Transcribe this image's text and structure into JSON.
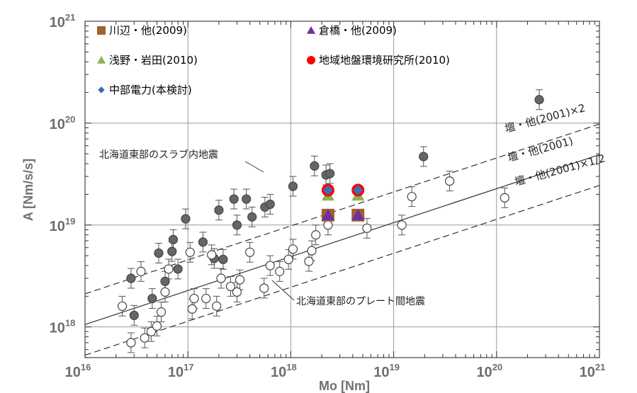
{
  "chart_data": {
    "type": "scatter",
    "x_scale": "log",
    "y_scale": "log",
    "xlim": [
      1e+16,
      1e+21
    ],
    "ylim": [
      5e+17,
      1e+21
    ],
    "x_tick_labels": [
      {
        "value": 1e+16,
        "base": "10",
        "exp": "16"
      },
      {
        "value": 1e+17,
        "base": "10",
        "exp": "17"
      },
      {
        "value": 1e+18,
        "base": "10",
        "exp": "18"
      },
      {
        "value": 1e+19,
        "base": "10",
        "exp": "19"
      },
      {
        "value": 1e+20,
        "base": "10",
        "exp": "20"
      },
      {
        "value": 1e+21,
        "base": "10",
        "exp": "21"
      }
    ],
    "y_tick_labels": [
      {
        "value": 1e+18,
        "base": "10",
        "exp": "18"
      },
      {
        "value": 1e+19,
        "base": "10",
        "exp": "19"
      },
      {
        "value": 1e+20,
        "base": "10",
        "exp": "20"
      },
      {
        "value": 1e+21,
        "base": "10",
        "exp": "21"
      }
    ],
    "xlabel": "Mo [Nm]",
    "ylabel": "A  [Nm/s/s]",
    "grid": true,
    "legend_placement": "top-left",
    "legend": [
      {
        "label": "川辺・他(2009)",
        "marker": "square",
        "color": "#a0622d"
      },
      {
        "label": "倉橋・他(2009)",
        "marker": "triangle",
        "color": "#7030a0"
      },
      {
        "label": "浅野・岩田(2010)",
        "marker": "triangle",
        "color": "#8db255"
      },
      {
        "label": "地域地盤環境研究所(2010)",
        "marker": "circle",
        "color": "#ff0000"
      },
      {
        "label": "中部電力(本検討)",
        "marker": "diamond",
        "color": "#3d6fb0"
      }
    ],
    "reference_lines": [
      {
        "label": "壇・他(2001)×2",
        "factor": 2
      },
      {
        "label": "壇・他(2001)",
        "factor": 1
      },
      {
        "label": "壇・他(2001)×1/2",
        "factor": 0.5
      }
    ],
    "reference_relation": {
      "A_at_Mo_1e18": 4.9e+18,
      "exponent": 0.3333
    },
    "annotations": [
      {
        "text": "北海道東部のスラブ内地震"
      },
      {
        "text": "北海道東部のプレート間地震"
      }
    ],
    "series": [
      {
        "name": "北海道東部のスラブ内地震",
        "marker": "filled-circle",
        "color": "#666666",
        "points": [
          [
            2.8e+16,
            3e+18
          ],
          [
            3e+16,
            1.3e+18
          ],
          [
            4.5e+16,
            1.9e+18
          ],
          [
            5.2e+16,
            5.3e+18
          ],
          [
            6e+16,
            2.8e+18
          ],
          [
            7e+16,
            5.5e+18
          ],
          [
            7.2e+16,
            7.2e+18
          ],
          [
            8e+16,
            3.7e+18
          ],
          [
            9.5e+16,
            1.15e+19
          ],
          [
            1.4e+17,
            6.8e+18
          ],
          [
            1.8e+17,
            4.7e+18
          ],
          [
            2e+17,
            1.4e+19
          ],
          [
            2.2e+17,
            4.6e+18
          ],
          [
            2.8e+17,
            1.8e+19
          ],
          [
            3e+17,
            1e+19
          ],
          [
            3.7e+17,
            1.8e+19
          ],
          [
            4.2e+17,
            1.2e+19
          ],
          [
            5.6e+17,
            1.5e+19
          ],
          [
            6.3e+17,
            1.6e+19
          ],
          [
            1.05e+18,
            2.4e+19
          ],
          [
            1.7e+18,
            3.8e+19
          ],
          [
            2.2e+18,
            3.1e+19
          ],
          [
            2.4e+18,
            3.2e+19
          ],
          [
            1.95e+19,
            4.7e+19
          ],
          [
            2.6e+20,
            1.7e+20
          ]
        ]
      },
      {
        "name": "北海道東部のプレート間地震",
        "marker": "open-circle",
        "color": "#666666",
        "points": [
          [
            2.3e+16,
            1.6e+18
          ],
          [
            2.8e+16,
            7e+17
          ],
          [
            3.5e+16,
            3.5e+18
          ],
          [
            3.8e+16,
            7.8e+17
          ],
          [
            4.4e+16,
            9e+17
          ],
          [
            5e+16,
            1.02e+18
          ],
          [
            5.5e+16,
            1.4e+18
          ],
          [
            6e+16,
            2.2e+18
          ],
          [
            6.5e+16,
            3.7e+18
          ],
          [
            1.05e+17,
            5.4e+18
          ],
          [
            1.1e+17,
            1.5e+18
          ],
          [
            1.15e+17,
            1.9e+18
          ],
          [
            1.5e+17,
            1.9e+18
          ],
          [
            1.7e+17,
            5.1e+18
          ],
          [
            1.9e+17,
            1.6e+18
          ],
          [
            2.1e+17,
            3e+18
          ],
          [
            2.6e+17,
            2.5e+18
          ],
          [
            3e+17,
            2.2e+18
          ],
          [
            3.2e+17,
            2.9e+18
          ],
          [
            4e+17,
            5.4e+18
          ],
          [
            5.5e+17,
            2.4e+18
          ],
          [
            6.3e+17,
            4e+18
          ],
          [
            7.8e+17,
            3.5e+18
          ],
          [
            9.5e+17,
            4.6e+18
          ],
          [
            1.05e+18,
            5.8e+18
          ],
          [
            1.5e+18,
            4.4e+18
          ],
          [
            1.6e+18,
            5.6e+18
          ],
          [
            1.75e+18,
            8e+18
          ],
          [
            2.3e+18,
            1e+19
          ],
          [
            5.5e+18,
            9.3e+18
          ],
          [
            1.2e+19,
            1e+19
          ],
          [
            1.5e+19,
            1.9e+19
          ],
          [
            3.5e+19,
            2.7e+19
          ],
          [
            1.2e+20,
            1.85e+19
          ]
        ]
      }
    ],
    "study_markers": [
      {
        "Mo": 2.3e+18,
        "A": 1.25e+19,
        "marker": "square",
        "color": "#a0622d"
      },
      {
        "Mo": 2.3e+18,
        "A": 1.25e+19,
        "marker": "triangle",
        "color": "#7030a0"
      },
      {
        "Mo": 2.3e+18,
        "A": 1.95e+19,
        "marker": "triangle",
        "color": "#8db255"
      },
      {
        "Mo": 2.3e+18,
        "A": 2.2e+19,
        "marker": "circle",
        "color": "#ff0000"
      },
      {
        "Mo": 2.3e+18,
        "A": 2.2e+19,
        "marker": "diamond",
        "color": "#3d6fb0"
      },
      {
        "Mo": 4.5e+18,
        "A": 1.25e+19,
        "marker": "square",
        "color": "#a0622d"
      },
      {
        "Mo": 4.5e+18,
        "A": 1.25e+19,
        "marker": "triangle",
        "color": "#7030a0"
      },
      {
        "Mo": 4.5e+18,
        "A": 1.95e+19,
        "marker": "triangle",
        "color": "#8db255"
      },
      {
        "Mo": 4.5e+18,
        "A": 2.2e+19,
        "marker": "circle",
        "color": "#ff0000"
      },
      {
        "Mo": 4.5e+18,
        "A": 2.2e+19,
        "marker": "diamond",
        "color": "#3d6fb0"
      }
    ]
  }
}
